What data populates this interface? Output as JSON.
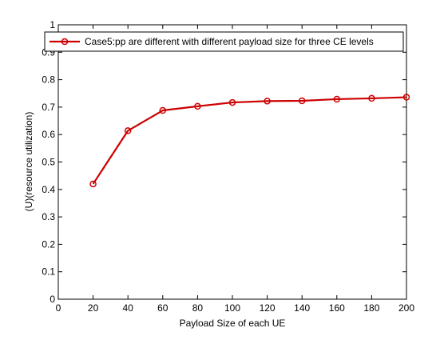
{
  "chart_data": {
    "type": "line",
    "title": "",
    "xlabel": "Payload Size of each UE",
    "ylabel": "(U)(resource utilization)",
    "xlim": [
      0,
      200
    ],
    "ylim": [
      0,
      1
    ],
    "xticks": [
      "0",
      "20",
      "40",
      "60",
      "80",
      "100",
      "120",
      "140",
      "160",
      "180",
      "200"
    ],
    "yticks": [
      "0",
      "0.1",
      "0.2",
      "0.3",
      "0.4",
      "0.5",
      "0.6",
      "0.7",
      "0.8",
      "0.9",
      "1"
    ],
    "grid": false,
    "legend": {
      "placement": "top"
    },
    "series": [
      {
        "name": "Case5:pp are different with different payload size for three CE levels",
        "color": "#cc0000",
        "marker": "circle",
        "x": [
          20,
          40,
          60,
          80,
          100,
          120,
          140,
          160,
          180,
          200
        ],
        "y": [
          0.42,
          0.614,
          0.688,
          0.703,
          0.717,
          0.722,
          0.723,
          0.729,
          0.732,
          0.736
        ]
      }
    ]
  }
}
